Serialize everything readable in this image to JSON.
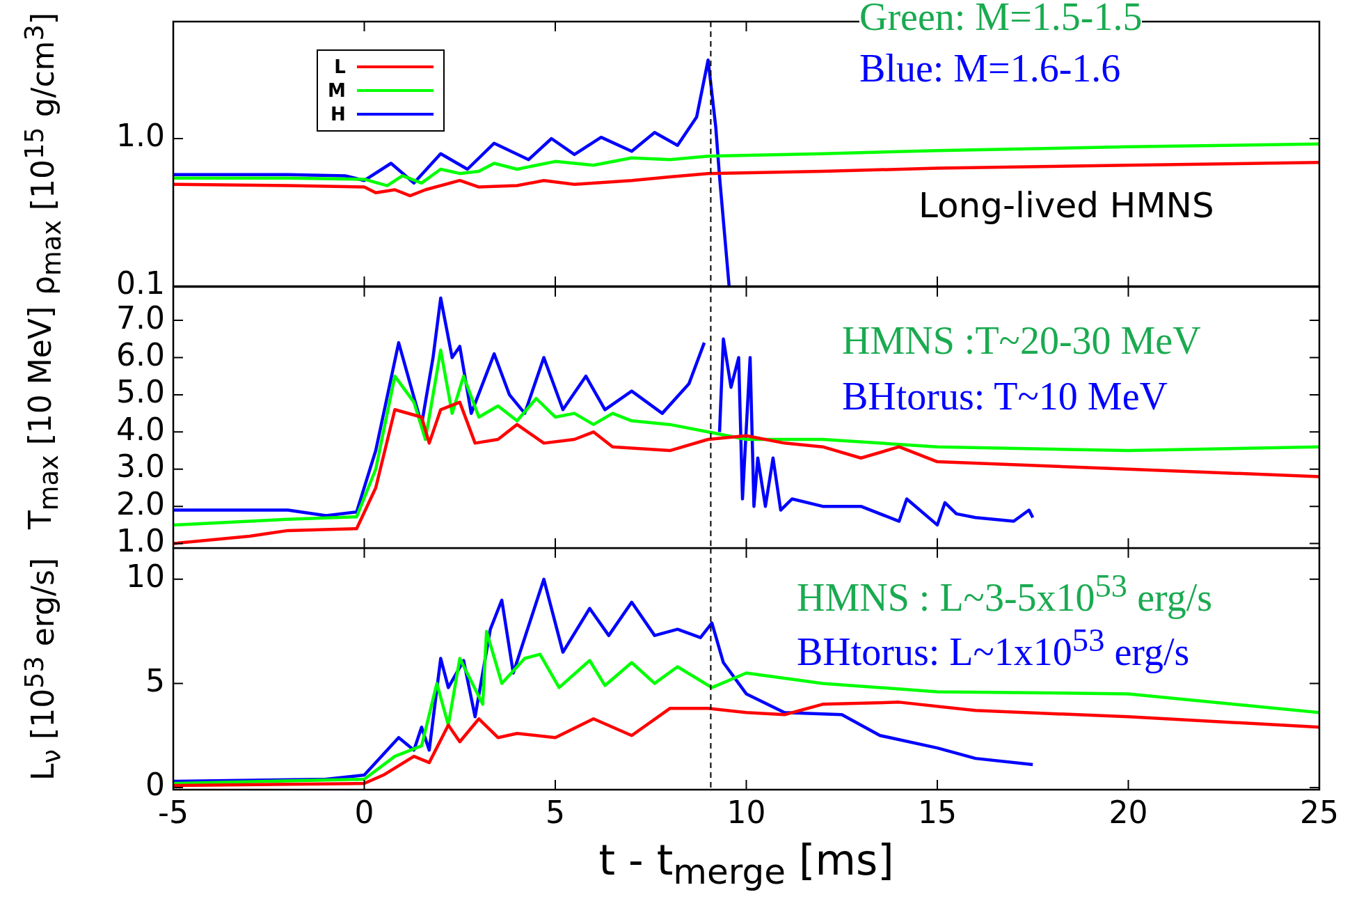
{
  "chart_data": [
    {
      "type": "line",
      "ylabel": "ρ$_{max}$ [10$^{15}$ g/cm$^{3}$]",
      "log": "y",
      "xlim": [
        -5,
        25
      ],
      "xticks": [
        -5,
        0,
        5,
        10,
        15,
        20,
        25
      ],
      "ylim": [
        0.1,
        6.2
      ],
      "yticks": [
        {
          "value": 0.1,
          "label": "0.1"
        },
        {
          "value": 1,
          "label": "1.0"
        }
      ],
      "tick_labels": "y",
      "legend": "top left",
      "marker": "none",
      "line_style": "solid",
      "ref_lines": [
        {
          "axis": "x",
          "value": 9.07,
          "line_style": "dashed",
          "color": "#000000"
        }
      ],
      "annotations": [
        "Long-lived  HMNS",
        "Green:  M=1.5-1.5",
        "Blue:    M=1.6-1.6"
      ],
      "series": [
        {
          "name": "L",
          "color": "#ff0000",
          "x": [
            -5,
            -2,
            0,
            0.3,
            0.8,
            1.2,
            1.6,
            2.5,
            3,
            4,
            4.7,
            5.5,
            7,
            8,
            9,
            12,
            15,
            20,
            25
          ],
          "values": [
            0.49,
            0.48,
            0.47,
            0.43,
            0.45,
            0.41,
            0.45,
            0.52,
            0.47,
            0.48,
            0.52,
            0.49,
            0.52,
            0.55,
            0.58,
            0.6,
            0.63,
            0.66,
            0.69
          ]
        },
        {
          "name": "M",
          "color": "#00ff00",
          "x": [
            -5,
            -2,
            0,
            0.6,
            1,
            1.5,
            2,
            2.5,
            3,
            3.4,
            4,
            5,
            6,
            7,
            8,
            9,
            12,
            15,
            20,
            25
          ],
          "values": [
            0.54,
            0.54,
            0.53,
            0.48,
            0.56,
            0.5,
            0.62,
            0.58,
            0.6,
            0.68,
            0.62,
            0.7,
            0.66,
            0.74,
            0.72,
            0.76,
            0.79,
            0.83,
            0.88,
            0.92
          ]
        },
        {
          "name": "H",
          "color": "#0000ff",
          "x": [
            -5,
            -2,
            -0.5,
            0,
            0.7,
            1.3,
            2,
            2.7,
            3.4,
            4.3,
            4.9,
            5.5,
            6.2,
            7,
            7.6,
            8.2,
            8.7,
            9,
            9.2,
            9.3,
            9.55
          ],
          "values": [
            0.57,
            0.57,
            0.56,
            0.52,
            0.68,
            0.5,
            0.79,
            0.62,
            0.93,
            0.72,
            1.0,
            0.78,
            1.02,
            0.82,
            1.1,
            0.9,
            1.4,
            3.4,
            1.2,
            0.55,
            0.1
          ]
        }
      ]
    },
    {
      "type": "line",
      "ylabel": "T$_{max}$ [10 MeV]",
      "xlim": [
        -5,
        25
      ],
      "xticks": [
        -5,
        0,
        5,
        10,
        15,
        20,
        25
      ],
      "ylim": [
        0.88,
        7.9
      ],
      "yticks": [
        {
          "value": 1,
          "label": "1.0"
        },
        {
          "value": 2,
          "label": "2.0"
        },
        {
          "value": 3,
          "label": "3.0"
        },
        {
          "value": 4,
          "label": "4.0"
        },
        {
          "value": 5,
          "label": "5.0"
        },
        {
          "value": 6,
          "label": "6.0"
        },
        {
          "value": 7,
          "label": "7.0"
        }
      ],
      "tick_labels": "y",
      "marker": "none",
      "line_style": "solid",
      "ref_lines": [
        {
          "axis": "x",
          "value": 9.07,
          "line_style": "dashed",
          "color": "#000000"
        }
      ],
      "annotations": [
        "HMNS :T~20-30 MeV",
        "BHtorus: T~10 MeV"
      ],
      "series": [
        {
          "color": "#ff0000",
          "x": [
            -5,
            -3,
            -2,
            -0.2,
            0.3,
            0.8,
            1.5,
            1.7,
            2,
            2.5,
            2.9,
            3.5,
            4,
            4.7,
            5.5,
            6,
            6.5,
            8,
            9,
            10,
            11,
            12,
            13,
            14,
            15,
            20,
            25
          ],
          "values": [
            1.0,
            1.2,
            1.35,
            1.4,
            2.5,
            4.6,
            4.4,
            3.7,
            4.6,
            4.8,
            3.7,
            3.8,
            4.2,
            3.7,
            3.8,
            4.0,
            3.6,
            3.5,
            3.8,
            3.9,
            3.7,
            3.6,
            3.3,
            3.6,
            3.2,
            3.0,
            2.8
          ]
        },
        {
          "color": "#00ff00",
          "x": [
            -5,
            -2,
            -0.2,
            0.3,
            0.8,
            1.3,
            1.6,
            2,
            2.3,
            2.6,
            3,
            3.5,
            4,
            4.5,
            5,
            5.5,
            6,
            6.5,
            7,
            8,
            9,
            10,
            12,
            15,
            20,
            25
          ],
          "values": [
            1.5,
            1.65,
            1.72,
            3.0,
            5.5,
            4.8,
            3.8,
            6.2,
            4.5,
            5.5,
            4.4,
            4.7,
            4.3,
            4.9,
            4.4,
            4.5,
            4.2,
            4.5,
            4.3,
            4.2,
            4.0,
            3.8,
            3.8,
            3.6,
            3.5,
            3.6
          ]
        },
        {
          "color": "#0000ff",
          "x": [
            -5,
            -2,
            -1,
            -0.2,
            0.3,
            0.9,
            1.5,
            1.8,
            2,
            2.3,
            2.5,
            2.8,
            3.4,
            3.8,
            4.2,
            4.7,
            5.2,
            5.8,
            6.3,
            7,
            7.8,
            8.5,
            8.9,
            9,
            9.2,
            9.3,
            9.4,
            9.6,
            9.8,
            9.9,
            10.1,
            10.2,
            10.3,
            10.5,
            10.7,
            10.9,
            11.2,
            12,
            13,
            14,
            14.2,
            15,
            15.2,
            15.5,
            16,
            17,
            17.4,
            17.5
          ],
          "values": [
            1.9,
            1.9,
            1.75,
            1.85,
            3.5,
            6.4,
            4.2,
            6.0,
            7.6,
            6.0,
            6.3,
            4.5,
            6.1,
            5.0,
            4.5,
            6.0,
            4.6,
            5.5,
            4.6,
            5.1,
            4.5,
            5.3,
            6.4,
            null,
            null,
            4.0,
            6.5,
            5.2,
            6.0,
            2.2,
            6.0,
            2.0,
            3.3,
            2.0,
            3.3,
            1.9,
            2.2,
            2.0,
            2.0,
            1.6,
            2.2,
            1.5,
            2.1,
            1.8,
            1.7,
            1.6,
            1.9,
            1.7
          ]
        }
      ]
    },
    {
      "type": "line",
      "xlabel": "t - t$_{merge}$ [ms]",
      "ylabel": "L$_{ν}$ [10$^{53}$ erg/s]",
      "xlim": [
        -5,
        25
      ],
      "xticks": [
        -5,
        0,
        5,
        10,
        15,
        20,
        25
      ],
      "ylim": [
        -0.1,
        11.5
      ],
      "yticks": [
        0,
        5,
        10
      ],
      "marker": "none",
      "line_style": "solid",
      "ref_lines": [
        {
          "axis": "x",
          "value": 9.07,
          "line_style": "dashed",
          "color": "#000000"
        }
      ],
      "annotations": [
        "HMNS : L~3-5x10$^{53}$ erg/s",
        "BHtorus:  L~1x10$^{53}$ erg/s"
      ],
      "series": [
        {
          "color": "#ff0000",
          "x": [
            -5,
            0,
            0.5,
            1.3,
            1.7,
            2.2,
            2.5,
            3,
            3.5,
            4,
            5,
            6,
            7,
            8,
            9,
            10,
            11,
            12,
            14,
            16,
            20,
            25
          ],
          "values": [
            0.1,
            0.2,
            0.6,
            1.5,
            1.2,
            3.0,
            2.2,
            3.3,
            2.4,
            2.6,
            2.4,
            3.3,
            2.5,
            3.8,
            3.8,
            3.6,
            3.5,
            4.0,
            4.1,
            3.7,
            3.4,
            2.9
          ]
        },
        {
          "color": "#00ff00",
          "x": [
            -5,
            0,
            0.8,
            1.5,
            1.9,
            2.2,
            2.5,
            3.1,
            3.2,
            3.6,
            4.2,
            4.6,
            5.1,
            5.9,
            6.3,
            7,
            7.6,
            8.2,
            9.1,
            10,
            12,
            15,
            20,
            25
          ],
          "values": [
            0.2,
            0.4,
            1.5,
            2.0,
            5.0,
            3.0,
            6.2,
            4.0,
            7.5,
            5.0,
            6.2,
            6.4,
            4.8,
            6.1,
            4.9,
            6.0,
            5.0,
            5.8,
            4.8,
            5.5,
            5.0,
            4.6,
            4.5,
            3.6
          ]
        },
        {
          "color": "#0000ff",
          "x": [
            -5,
            -1,
            0,
            0.9,
            1.3,
            1.5,
            1.7,
            2,
            2.2,
            2.6,
            2.9,
            3.3,
            3.6,
            3.9,
            4.7,
            5.2,
            5.9,
            6.4,
            7,
            7.6,
            8.2,
            8.8,
            9.1,
            9.4,
            10,
            11,
            12.5,
            13.5,
            15,
            16,
            17.5
          ],
          "values": [
            0.3,
            0.4,
            0.6,
            2.4,
            1.8,
            2.9,
            1.8,
            6.2,
            4.8,
            6.1,
            3.4,
            7.6,
            9.0,
            5.5,
            10.0,
            6.5,
            8.6,
            7.3,
            8.9,
            7.3,
            7.6,
            7.2,
            7.9,
            6.0,
            4.5,
            3.6,
            3.5,
            2.5,
            1.9,
            1.4,
            1.1
          ]
        }
      ]
    }
  ]
}
